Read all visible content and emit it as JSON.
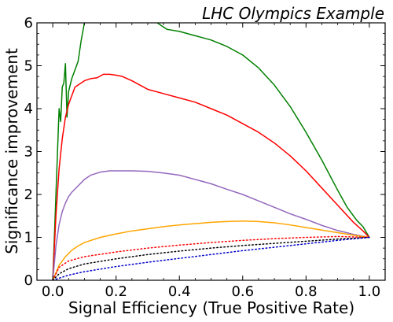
{
  "chart_data": {
    "type": "line",
    "title": "LHC Olympics Example",
    "xlabel": "Signal Efficiency (True Positive Rate)",
    "ylabel": "Significance improvement",
    "xlim": [
      -0.05,
      1.05
    ],
    "ylim": [
      0,
      6
    ],
    "xticks": [
      "0.0",
      "0.2",
      "0.4",
      "0.6",
      "0.8",
      "1.0"
    ],
    "yticks": [
      "0",
      "1",
      "2",
      "3",
      "4",
      "5",
      "6"
    ],
    "grid": false,
    "series": [
      {
        "color": "#008000",
        "style": "solid",
        "points": [
          [
            0.0,
            0.0
          ],
          [
            0.005,
            1.0
          ],
          [
            0.01,
            2.0
          ],
          [
            0.015,
            3.0
          ],
          [
            0.02,
            4.0
          ],
          [
            0.025,
            3.7
          ],
          [
            0.03,
            4.5
          ],
          [
            0.035,
            4.6
          ],
          [
            0.04,
            5.05
          ],
          [
            0.045,
            3.8
          ],
          [
            0.05,
            4.4
          ],
          [
            0.06,
            4.7
          ],
          [
            0.07,
            4.9
          ],
          [
            0.08,
            5.1
          ],
          [
            0.09,
            5.6
          ],
          [
            0.1,
            6.0
          ],
          [
            0.12,
            6.4
          ],
          [
            0.14,
            6.4
          ],
          [
            0.16,
            6.3
          ],
          [
            0.2,
            6.6
          ],
          [
            0.25,
            6.5
          ],
          [
            0.3,
            6.3
          ],
          [
            0.32,
            6.05
          ],
          [
            0.36,
            5.85
          ],
          [
            0.4,
            5.8
          ],
          [
            0.45,
            5.7
          ],
          [
            0.5,
            5.6
          ],
          [
            0.55,
            5.45
          ],
          [
            0.6,
            5.25
          ],
          [
            0.65,
            4.95
          ],
          [
            0.7,
            4.55
          ],
          [
            0.75,
            4.05
          ],
          [
            0.8,
            3.45
          ],
          [
            0.85,
            2.8
          ],
          [
            0.9,
            2.1
          ],
          [
            0.93,
            1.7
          ],
          [
            0.96,
            1.4
          ],
          [
            0.98,
            1.25
          ],
          [
            1.0,
            1.0
          ]
        ]
      },
      {
        "color": "#ff0000",
        "style": "solid",
        "points": [
          [
            0.0,
            0.0
          ],
          [
            0.01,
            1.5
          ],
          [
            0.02,
            2.6
          ],
          [
            0.03,
            3.3
          ],
          [
            0.04,
            3.8
          ],
          [
            0.05,
            4.1
          ],
          [
            0.06,
            4.3
          ],
          [
            0.07,
            4.5
          ],
          [
            0.08,
            4.55
          ],
          [
            0.1,
            4.65
          ],
          [
            0.12,
            4.7
          ],
          [
            0.14,
            4.72
          ],
          [
            0.16,
            4.8
          ],
          [
            0.18,
            4.8
          ],
          [
            0.2,
            4.78
          ],
          [
            0.22,
            4.75
          ],
          [
            0.25,
            4.65
          ],
          [
            0.3,
            4.45
          ],
          [
            0.35,
            4.35
          ],
          [
            0.4,
            4.25
          ],
          [
            0.45,
            4.15
          ],
          [
            0.5,
            4.0
          ],
          [
            0.55,
            3.85
          ],
          [
            0.6,
            3.65
          ],
          [
            0.65,
            3.45
          ],
          [
            0.7,
            3.2
          ],
          [
            0.75,
            2.9
          ],
          [
            0.8,
            2.55
          ],
          [
            0.85,
            2.15
          ],
          [
            0.9,
            1.75
          ],
          [
            0.95,
            1.35
          ],
          [
            0.98,
            1.15
          ],
          [
            1.0,
            1.0
          ]
        ]
      },
      {
        "color": "#9467bd",
        "style": "solid",
        "points": [
          [
            0.0,
            0.0
          ],
          [
            0.01,
            0.8
          ],
          [
            0.02,
            1.3
          ],
          [
            0.03,
            1.6
          ],
          [
            0.04,
            1.8
          ],
          [
            0.05,
            1.95
          ],
          [
            0.06,
            2.05
          ],
          [
            0.08,
            2.2
          ],
          [
            0.1,
            2.35
          ],
          [
            0.12,
            2.45
          ],
          [
            0.15,
            2.52
          ],
          [
            0.18,
            2.55
          ],
          [
            0.2,
            2.55
          ],
          [
            0.25,
            2.55
          ],
          [
            0.3,
            2.54
          ],
          [
            0.35,
            2.5
          ],
          [
            0.4,
            2.45
          ],
          [
            0.45,
            2.35
          ],
          [
            0.5,
            2.25
          ],
          [
            0.55,
            2.12
          ],
          [
            0.6,
            2.0
          ],
          [
            0.65,
            1.85
          ],
          [
            0.7,
            1.7
          ],
          [
            0.75,
            1.55
          ],
          [
            0.8,
            1.42
          ],
          [
            0.85,
            1.28
          ],
          [
            0.9,
            1.16
          ],
          [
            0.95,
            1.07
          ],
          [
            1.0,
            1.0
          ]
        ]
      },
      {
        "color": "#ffa500",
        "style": "solid",
        "points": [
          [
            0.0,
            0.0
          ],
          [
            0.02,
            0.35
          ],
          [
            0.04,
            0.55
          ],
          [
            0.06,
            0.7
          ],
          [
            0.08,
            0.8
          ],
          [
            0.1,
            0.88
          ],
          [
            0.15,
            1.0
          ],
          [
            0.2,
            1.08
          ],
          [
            0.25,
            1.15
          ],
          [
            0.3,
            1.2
          ],
          [
            0.35,
            1.25
          ],
          [
            0.4,
            1.29
          ],
          [
            0.45,
            1.32
          ],
          [
            0.5,
            1.35
          ],
          [
            0.55,
            1.37
          ],
          [
            0.6,
            1.38
          ],
          [
            0.65,
            1.37
          ],
          [
            0.7,
            1.34
          ],
          [
            0.75,
            1.29
          ],
          [
            0.8,
            1.23
          ],
          [
            0.85,
            1.17
          ],
          [
            0.9,
            1.11
          ],
          [
            0.95,
            1.05
          ],
          [
            1.0,
            1.0
          ]
        ]
      },
      {
        "color": "#ff0000",
        "style": "dotted",
        "points": [
          [
            0.0,
            0.0
          ],
          [
            0.02,
            0.3
          ],
          [
            0.05,
            0.45
          ],
          [
            0.1,
            0.55
          ],
          [
            0.2,
            0.66
          ],
          [
            0.3,
            0.75
          ],
          [
            0.4,
            0.82
          ],
          [
            0.5,
            0.88
          ],
          [
            0.6,
            0.93
          ],
          [
            0.7,
            0.97
          ],
          [
            0.8,
            1.0
          ],
          [
            0.9,
            1.02
          ],
          [
            1.0,
            1.0
          ]
        ]
      },
      {
        "color": "#000000",
        "style": "dotted",
        "points": [
          [
            0.0,
            0.0
          ],
          [
            0.02,
            0.15
          ],
          [
            0.05,
            0.27
          ],
          [
            0.1,
            0.38
          ],
          [
            0.2,
            0.5
          ],
          [
            0.3,
            0.6
          ],
          [
            0.4,
            0.68
          ],
          [
            0.5,
            0.75
          ],
          [
            0.6,
            0.81
          ],
          [
            0.7,
            0.86
          ],
          [
            0.8,
            0.91
          ],
          [
            0.9,
            0.96
          ],
          [
            1.0,
            1.0
          ]
        ]
      },
      {
        "color": "#0000cd",
        "style": "dotted",
        "points": [
          [
            0.0,
            0.0
          ],
          [
            0.05,
            0.12
          ],
          [
            0.1,
            0.2
          ],
          [
            0.2,
            0.32
          ],
          [
            0.3,
            0.42
          ],
          [
            0.4,
            0.51
          ],
          [
            0.5,
            0.6
          ],
          [
            0.6,
            0.69
          ],
          [
            0.7,
            0.77
          ],
          [
            0.8,
            0.85
          ],
          [
            0.9,
            0.93
          ],
          [
            1.0,
            1.0
          ]
        ]
      }
    ]
  }
}
